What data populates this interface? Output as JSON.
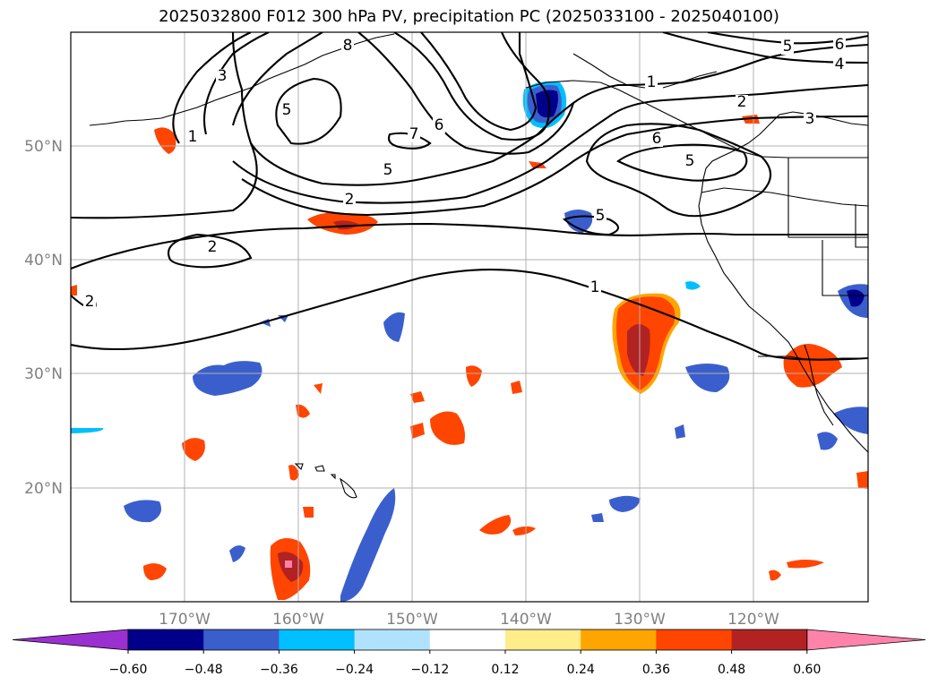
{
  "title": "2025032800 F012 300 hPa PV, precipitation PC (2025033100 - 2025040100)",
  "map": {
    "lat_labels": [
      "50°N",
      "40°N",
      "30°N",
      "20°N"
    ],
    "lon_labels": [
      "170°W",
      "160°W",
      "150°W",
      "140°W",
      "130°W",
      "120°W"
    ],
    "gridlines": true,
    "pv_contour_labels": [
      "8",
      "3",
      "1",
      "5",
      "7",
      "6",
      "1",
      "2",
      "3",
      "6",
      "5",
      "5",
      "2",
      "5",
      "2",
      "1",
      "2",
      "5",
      "4",
      "6"
    ]
  },
  "colorbar": {
    "ticks": [
      "−0.60",
      "−0.48",
      "−0.36",
      "−0.24",
      "−0.12",
      "0.12",
      "0.24",
      "0.36",
      "0.48",
      "0.60"
    ],
    "colors": [
      "#9b30d0",
      "#00008b",
      "#3a5fcd",
      "#00bfff",
      "#b0e2ff",
      "#ffffff",
      "#ffec8b",
      "#ffa500",
      "#ff4500",
      "#b22222",
      "#ff82ab"
    ]
  }
}
